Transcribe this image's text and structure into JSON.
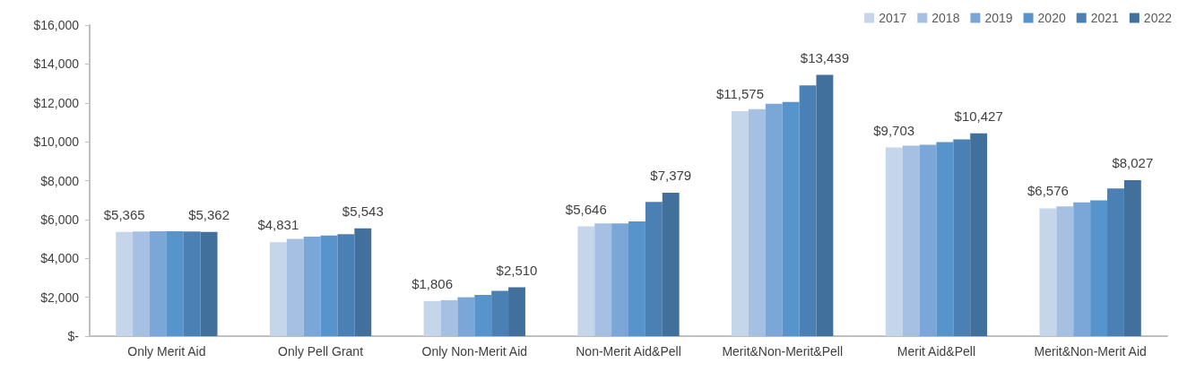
{
  "chart_data": {
    "type": "bar",
    "categories": [
      "Only Merit Aid",
      "Only Pell Grant",
      "Only Non-Merit Aid",
      "Non-Merit Aid&Pell",
      "Merit&Non-Merit&Pell",
      "Merit Aid&Pell",
      "Merit&Non-Merit Aid"
    ],
    "series": [
      {
        "name": "2017",
        "color": "#c5d5ea",
        "values": [
          5365,
          4831,
          1806,
          5646,
          11575,
          9703,
          6576
        ],
        "value_labels": [
          "$5,365",
          "$4,831",
          "$1,806",
          "$5,646",
          "$11,575",
          "$9,703",
          "$6,576"
        ]
      },
      {
        "name": "2018",
        "color": "#a5c0e3",
        "values": [
          5380,
          5000,
          1850,
          5800,
          11680,
          9800,
          6680
        ]
      },
      {
        "name": "2019",
        "color": "#7ba7d8",
        "values": [
          5400,
          5120,
          2000,
          5800,
          11950,
          9850,
          6880
        ]
      },
      {
        "name": "2020",
        "color": "#5794cc",
        "values": [
          5400,
          5180,
          2120,
          5900,
          12050,
          9980,
          6990
        ]
      },
      {
        "name": "2021",
        "color": "#4b80b5",
        "values": [
          5380,
          5250,
          2330,
          6900,
          12900,
          10120,
          7600
        ]
      },
      {
        "name": "2022",
        "color": "#41709c",
        "values": [
          5362,
          5543,
          2510,
          7379,
          13439,
          10427,
          8027
        ],
        "value_labels": [
          "$5,362",
          "$5,543",
          "$2,510",
          "$7,379",
          "$13,439",
          "$10,427",
          "$8,027"
        ]
      }
    ],
    "ylim": [
      0,
      16000
    ],
    "yticks": [
      {
        "value": 0,
        "label": "$-"
      },
      {
        "value": 2000,
        "label": "$2,000"
      },
      {
        "value": 4000,
        "label": "$4,000"
      },
      {
        "value": 6000,
        "label": "$6,000"
      },
      {
        "value": 8000,
        "label": "$8,000"
      },
      {
        "value": 10000,
        "label": "$10,000"
      },
      {
        "value": 12000,
        "label": "$12,000"
      },
      {
        "value": 14000,
        "label": "$14,000"
      },
      {
        "value": 16000,
        "label": "$16,000"
      }
    ],
    "grid": false,
    "legend": "top right"
  }
}
